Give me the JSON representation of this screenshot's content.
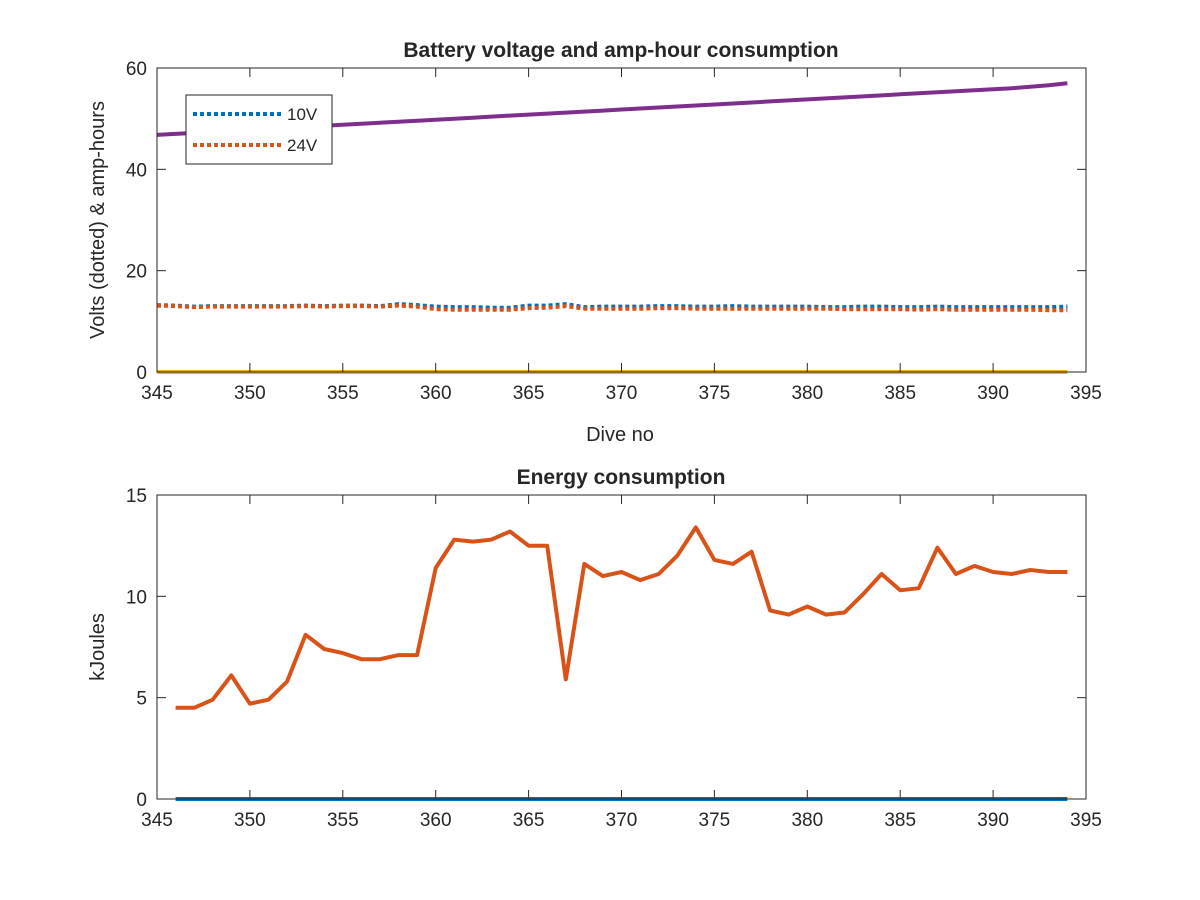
{
  "chart_data": [
    {
      "type": "line",
      "title": "Battery voltage and amp-hour consumption",
      "xlabel": "Dive no",
      "ylabel": "Volts (dotted) & amp-hours",
      "xlim": [
        345,
        395
      ],
      "ylim": [
        0,
        60
      ],
      "xticks": [
        "345",
        "350",
        "355",
        "360",
        "365",
        "370",
        "375",
        "380",
        "385",
        "390",
        "395"
      ],
      "yticks": [
        "0",
        "20",
        "40",
        "60"
      ],
      "grid": false,
      "legend": {
        "placement": "top-left",
        "entries": [
          "10V",
          "24V"
        ]
      },
      "x": [
        345,
        346,
        347,
        348,
        349,
        350,
        351,
        352,
        353,
        354,
        355,
        356,
        357,
        358,
        359,
        360,
        361,
        362,
        363,
        364,
        365,
        366,
        367,
        368,
        369,
        370,
        371,
        372,
        373,
        374,
        375,
        376,
        377,
        378,
        379,
        380,
        381,
        382,
        383,
        384,
        385,
        386,
        387,
        388,
        389,
        390,
        391,
        392,
        393,
        394
      ],
      "series": [
        {
          "name": "10V",
          "style": "dotted",
          "color": "#0072bd",
          "values": [
            13.2,
            13.1,
            12.9,
            13.0,
            13.0,
            13.0,
            13.0,
            13.0,
            13.1,
            13.0,
            13.1,
            13.1,
            13.0,
            13.4,
            13.2,
            12.9,
            12.8,
            12.8,
            12.7,
            12.7,
            13.1,
            13.1,
            13.4,
            12.8,
            12.9,
            12.9,
            12.9,
            13.0,
            13.0,
            12.9,
            12.9,
            13.0,
            12.9,
            12.9,
            12.9,
            12.9,
            12.8,
            12.8,
            12.9,
            12.9,
            12.8,
            12.8,
            12.9,
            12.8,
            12.8,
            12.8,
            12.8,
            12.8,
            12.8,
            12.9
          ]
        },
        {
          "name": "24V",
          "style": "dotted",
          "color": "#d95319",
          "values": [
            13.1,
            13.0,
            12.8,
            12.9,
            12.9,
            12.9,
            12.9,
            12.9,
            13.0,
            12.9,
            13.0,
            13.0,
            12.9,
            13.1,
            12.9,
            12.4,
            12.3,
            12.3,
            12.3,
            12.3,
            12.6,
            12.7,
            13.0,
            12.5,
            12.5,
            12.5,
            12.5,
            12.6,
            12.6,
            12.5,
            12.5,
            12.5,
            12.5,
            12.5,
            12.5,
            12.5,
            12.5,
            12.4,
            12.4,
            12.4,
            12.4,
            12.3,
            12.4,
            12.3,
            12.3,
            12.3,
            12.3,
            12.3,
            12.2,
            12.2
          ]
        },
        {
          "style": "solid",
          "color": "#edb120",
          "values": [
            0,
            0,
            0,
            0,
            0,
            0,
            0,
            0,
            0,
            0,
            0,
            0,
            0,
            0,
            0,
            0,
            0,
            0,
            0,
            0,
            0,
            0,
            0,
            0,
            0,
            0,
            0,
            0,
            0,
            0,
            0,
            0,
            0,
            0,
            0,
            0,
            0,
            0,
            0,
            0,
            0,
            0,
            0,
            0,
            0,
            0,
            0,
            0,
            0,
            0
          ]
        },
        {
          "style": "solid",
          "color": "#7e2f8e",
          "values": [
            46.8,
            47.0,
            47.2,
            47.4,
            47.6,
            47.8,
            48.0,
            48.2,
            48.4,
            48.6,
            48.8,
            49.0,
            49.2,
            49.4,
            49.6,
            49.8,
            50.0,
            50.2,
            50.4,
            50.6,
            50.8,
            51.0,
            51.2,
            51.4,
            51.6,
            51.8,
            52.0,
            52.2,
            52.4,
            52.6,
            52.8,
            53.0,
            53.2,
            53.4,
            53.6,
            53.8,
            54.0,
            54.2,
            54.4,
            54.6,
            54.8,
            55.0,
            55.2,
            55.4,
            55.6,
            55.8,
            56.0,
            56.3,
            56.6,
            57.0
          ]
        }
      ]
    },
    {
      "type": "line",
      "title": "Energy consumption",
      "xlabel": "",
      "ylabel": "kJoules",
      "xlim": [
        345,
        395
      ],
      "ylim": [
        0,
        15
      ],
      "xticks": [
        "345",
        "350",
        "355",
        "360",
        "365",
        "370",
        "375",
        "380",
        "385",
        "390",
        "395"
      ],
      "yticks": [
        "0",
        "5",
        "10",
        "15"
      ],
      "grid": false,
      "x": [
        346,
        347,
        348,
        349,
        350,
        351,
        352,
        353,
        354,
        355,
        356,
        357,
        358,
        359,
        360,
        361,
        362,
        363,
        364,
        365,
        366,
        367,
        368,
        369,
        370,
        371,
        372,
        373,
        374,
        375,
        376,
        377,
        378,
        379,
        380,
        381,
        382,
        383,
        384,
        385,
        386,
        387,
        388,
        389,
        390,
        391,
        392,
        393,
        394
      ],
      "series": [
        {
          "style": "solid",
          "color": "#0072bd",
          "values": [
            0,
            0,
            0,
            0,
            0,
            0,
            0,
            0,
            0,
            0,
            0,
            0,
            0,
            0,
            0,
            0,
            0,
            0,
            0,
            0,
            0,
            0,
            0,
            0,
            0,
            0,
            0,
            0,
            0,
            0,
            0,
            0,
            0,
            0,
            0,
            0,
            0,
            0,
            0,
            0,
            0,
            0,
            0,
            0,
            0,
            0,
            0,
            0,
            0
          ]
        },
        {
          "style": "solid",
          "color": "#d95319",
          "values": [
            4.5,
            4.5,
            4.9,
            6.1,
            4.7,
            4.9,
            5.8,
            8.1,
            7.4,
            7.2,
            6.9,
            6.9,
            7.1,
            7.1,
            11.4,
            12.8,
            12.7,
            12.8,
            13.2,
            12.5,
            12.5,
            5.9,
            11.6,
            11.0,
            11.2,
            10.8,
            11.1,
            12.0,
            13.4,
            11.8,
            11.6,
            12.2,
            9.3,
            9.1,
            9.5,
            9.1,
            9.2,
            10.1,
            11.1,
            10.3,
            10.4,
            12.4,
            11.1,
            11.5,
            11.2,
            11.1,
            11.3,
            11.2,
            11.2
          ]
        }
      ]
    }
  ]
}
